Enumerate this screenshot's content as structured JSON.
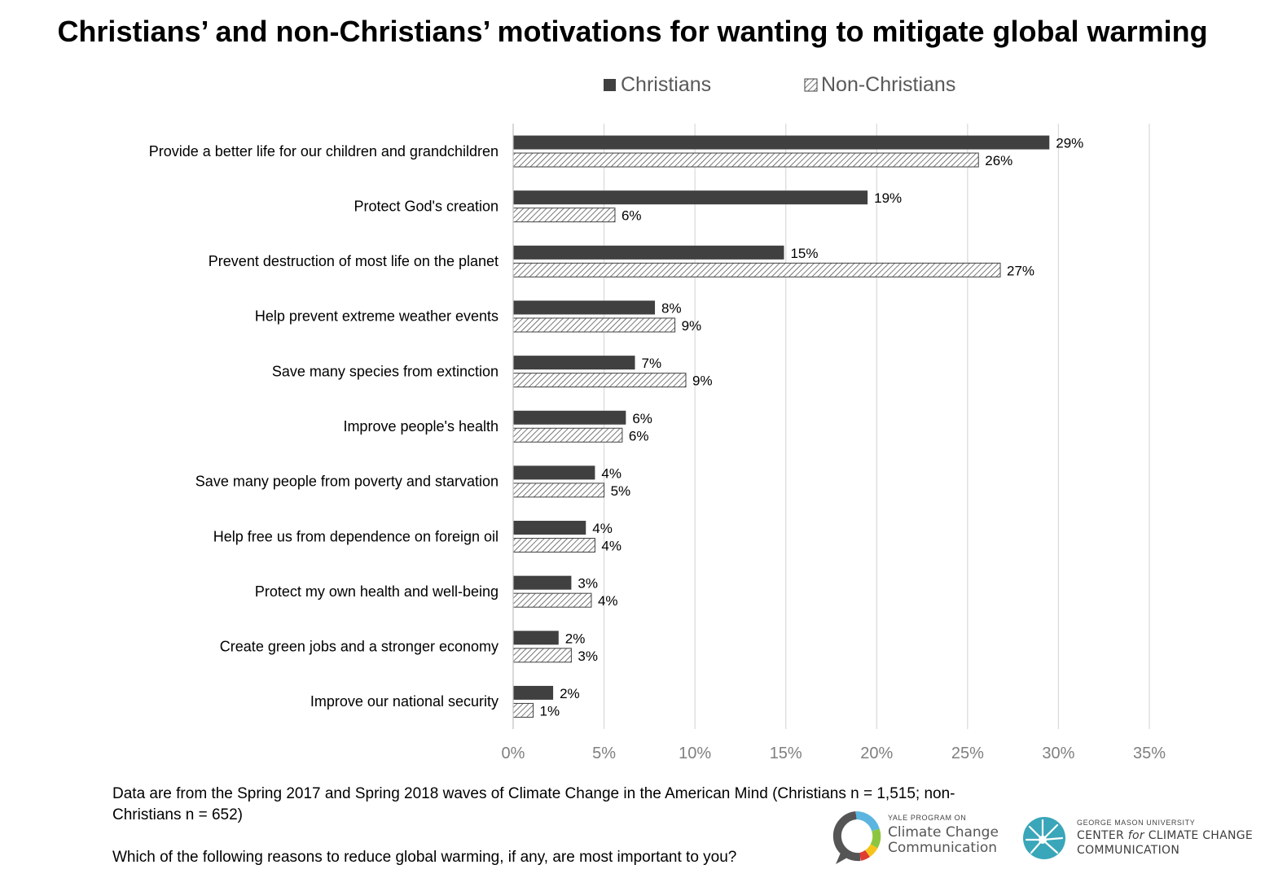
{
  "title": "Christians’ and non-Christians’ motivations for wanting to mitigate global warming",
  "note": "Data are from the Spring 2017 and Spring 2018 waves of Climate Change in the American Mind (Christians n = 1,515; non-Christians n = 652)",
  "question": "Which of the following reasons to reduce global warming, if any, are most important to you?",
  "logos": {
    "yale_small": "YALE PROGRAM ON",
    "yale_line1": "Climate Change",
    "yale_line2": "Communication",
    "gmu_small": "GEORGE MASON UNIVERSITY",
    "gmu_line1_a": "CENTER ",
    "gmu_line1_b": "for",
    "gmu_line1_c": " CLIMATE CHANGE",
    "gmu_line2": "COMMUNICATION"
  },
  "colors": {
    "christians": "#404040",
    "non_christians_pattern": "#555555",
    "grid": "#d9d9d9",
    "tick_labels": "#7f7f7f"
  },
  "chart_data": {
    "type": "bar",
    "orientation": "horizontal",
    "categories": [
      "Provide a better life for our children and grandchildren",
      "Protect God's creation",
      "Prevent destruction of most life on the planet",
      "Help prevent extreme weather events",
      "Save many species from extinction",
      "Improve people's health",
      "Save many people from poverty and starvation",
      "Help free us from dependence on foreign oil",
      "Protect my own health and well-being",
      "Create green jobs and a stronger economy",
      "Improve our national security"
    ],
    "series": [
      {
        "name": "Christians",
        "values": [
          29.5,
          19.5,
          14.9,
          7.8,
          6.7,
          6.2,
          4.5,
          4.0,
          3.2,
          2.5,
          2.2
        ],
        "labels": [
          "29%",
          "19%",
          "15%",
          "8%",
          "7%",
          "6%",
          "4%",
          "4%",
          "3%",
          "2%",
          "2%"
        ]
      },
      {
        "name": "Non-Christians",
        "values": [
          25.6,
          5.6,
          26.8,
          8.9,
          9.5,
          6.0,
          5.0,
          4.5,
          4.3,
          3.2,
          1.1
        ],
        "labels": [
          "26%",
          "6%",
          "27%",
          "9%",
          "9%",
          "6%",
          "5%",
          "4%",
          "4%",
          "3%",
          "1%"
        ]
      }
    ],
    "xlim": [
      0,
      35
    ],
    "xticks": [
      0,
      5,
      10,
      15,
      20,
      25,
      30,
      35
    ],
    "xtick_labels": [
      "0%",
      "5%",
      "10%",
      "15%",
      "20%",
      "25%",
      "30%",
      "35%"
    ],
    "grid": true,
    "legend_position": "top"
  }
}
